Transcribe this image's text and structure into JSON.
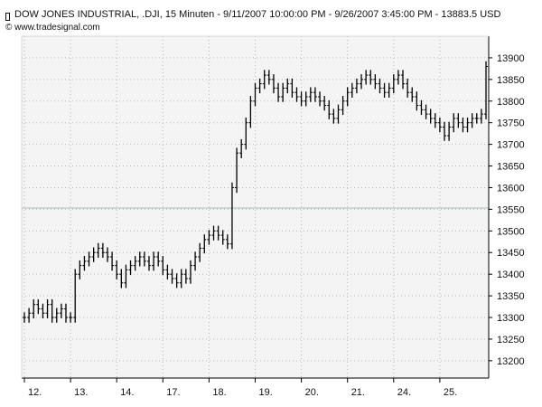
{
  "header": {
    "title": "DOW JONES INDUSTRIAL, .DJI, 15 Minuten - 9/11/2007 10:00:00 PM - 9/26/2007 3:45:00 PM - 13883.5 USD",
    "credit": "© www.tradesignal.com"
  },
  "colors": {
    "background": "#ffffff",
    "plot_background": "#f4f4f4",
    "axis": "#000000",
    "grid": "#b8b8b8",
    "bars": "#000000",
    "reference_line": "#9ec3a6"
  },
  "chart_data": {
    "type": "line",
    "style": "ohlc-bars",
    "title": "DOW JONES INDUSTRIAL, .DJI, 15 Minuten - 9/11/2007 10:00:00 PM - 9/26/2007 3:45:00 PM - 13883.5 USD",
    "xlabel": "",
    "ylabel": "",
    "y_axis_side": "right",
    "grid": true,
    "ylim": [
      13160,
      13950
    ],
    "yticks": [
      13200,
      13250,
      13300,
      13350,
      13400,
      13450,
      13500,
      13550,
      13600,
      13650,
      13700,
      13750,
      13800,
      13850,
      13900
    ],
    "day_labels": [
      "12.",
      "13.",
      "14.",
      "17.",
      "18.",
      "19.",
      "20.",
      "21.",
      "24.",
      "25."
    ],
    "reference_value": 13553,
    "last_value": 13883.5,
    "x_index_range": [
      0,
      100
    ],
    "day_starts": [
      0,
      10,
      20,
      30,
      40,
      50,
      60,
      70,
      80,
      90
    ],
    "x": [
      0,
      1,
      2,
      3,
      4,
      5,
      6,
      7,
      8,
      9,
      10,
      11,
      12,
      13,
      14,
      15,
      16,
      17,
      18,
      19,
      20,
      21,
      22,
      23,
      24,
      25,
      26,
      27,
      28,
      29,
      30,
      31,
      32,
      33,
      34,
      35,
      36,
      37,
      38,
      39,
      40,
      41,
      42,
      43,
      44,
      45,
      46,
      47,
      48,
      49,
      50,
      51,
      52,
      53,
      54,
      55,
      56,
      57,
      58,
      59,
      60,
      61,
      62,
      63,
      64,
      65,
      66,
      67,
      68,
      69,
      70,
      71,
      72,
      73,
      74,
      75,
      76,
      77,
      78,
      79,
      80,
      81,
      82,
      83,
      84,
      85,
      86,
      87,
      88,
      89,
      90,
      91,
      92,
      93,
      94,
      95,
      96,
      97,
      98,
      99,
      100
    ],
    "values": [
      13300,
      13310,
      13330,
      13320,
      13310,
      13330,
      13300,
      13310,
      13320,
      13300,
      13300,
      13400,
      13420,
      13430,
      13440,
      13450,
      13460,
      13450,
      13440,
      13420,
      13400,
      13380,
      13410,
      13420,
      13430,
      13440,
      13430,
      13420,
      13440,
      13430,
      13410,
      13400,
      13390,
      13380,
      13400,
      13390,
      13420,
      13440,
      13460,
      13480,
      13490,
      13500,
      13490,
      13480,
      13470,
      13600,
      13680,
      13700,
      13750,
      13800,
      13830,
      13840,
      13860,
      13850,
      13830,
      13810,
      13830,
      13840,
      13820,
      13810,
      13800,
      13810,
      13820,
      13810,
      13800,
      13790,
      13770,
      13760,
      13780,
      13800,
      13820,
      13830,
      13840,
      13850,
      13860,
      13850,
      13840,
      13830,
      13820,
      13830,
      13850,
      13860,
      13840,
      13820,
      13810,
      13790,
      13780,
      13770,
      13760,
      13750,
      13740,
      13720,
      13740,
      13760,
      13750,
      13740,
      13750,
      13760,
      13760,
      13770,
      13880
    ]
  }
}
